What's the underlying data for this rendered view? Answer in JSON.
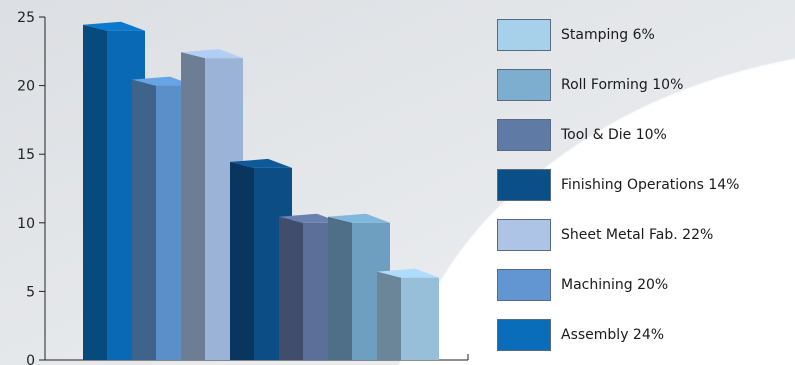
{
  "chart_data": {
    "type": "bar",
    "style": "3d",
    "ylim": [
      0,
      25
    ],
    "yticks": [
      "0",
      "5",
      "10",
      "15",
      "20",
      "25"
    ],
    "categories": [
      "Assembly",
      "Machining",
      "Sheet Metal Fab.",
      "Finishing Operations",
      "Tool & Die",
      "Roll Forming",
      "Stamping"
    ],
    "values": [
      24,
      20,
      22,
      14,
      10,
      10,
      6
    ],
    "colors": [
      "#0a69b4",
      "#5a8fc8",
      "#9bb3d6",
      "#0c4d86",
      "#5b6f99",
      "#6f9fc0",
      "#98bfd9"
    ],
    "grid": false,
    "legend_position": "right"
  },
  "legend": {
    "items": [
      {
        "label": "Stamping 6%",
        "color": "#a7d0ea"
      },
      {
        "label": "Roll Forming 10%",
        "color": "#7daed0"
      },
      {
        "label": "Tool & Die 10%",
        "color": "#5f7aa5"
      },
      {
        "label": "Finishing Operations 14%",
        "color": "#0b4f88"
      },
      {
        "label": "Sheet Metal Fab. 22%",
        "color": "#adc4e6"
      },
      {
        "label": "Machining 20%",
        "color": "#6196d3"
      },
      {
        "label": "Assembly 24%",
        "color": "#0a6dba"
      }
    ]
  }
}
